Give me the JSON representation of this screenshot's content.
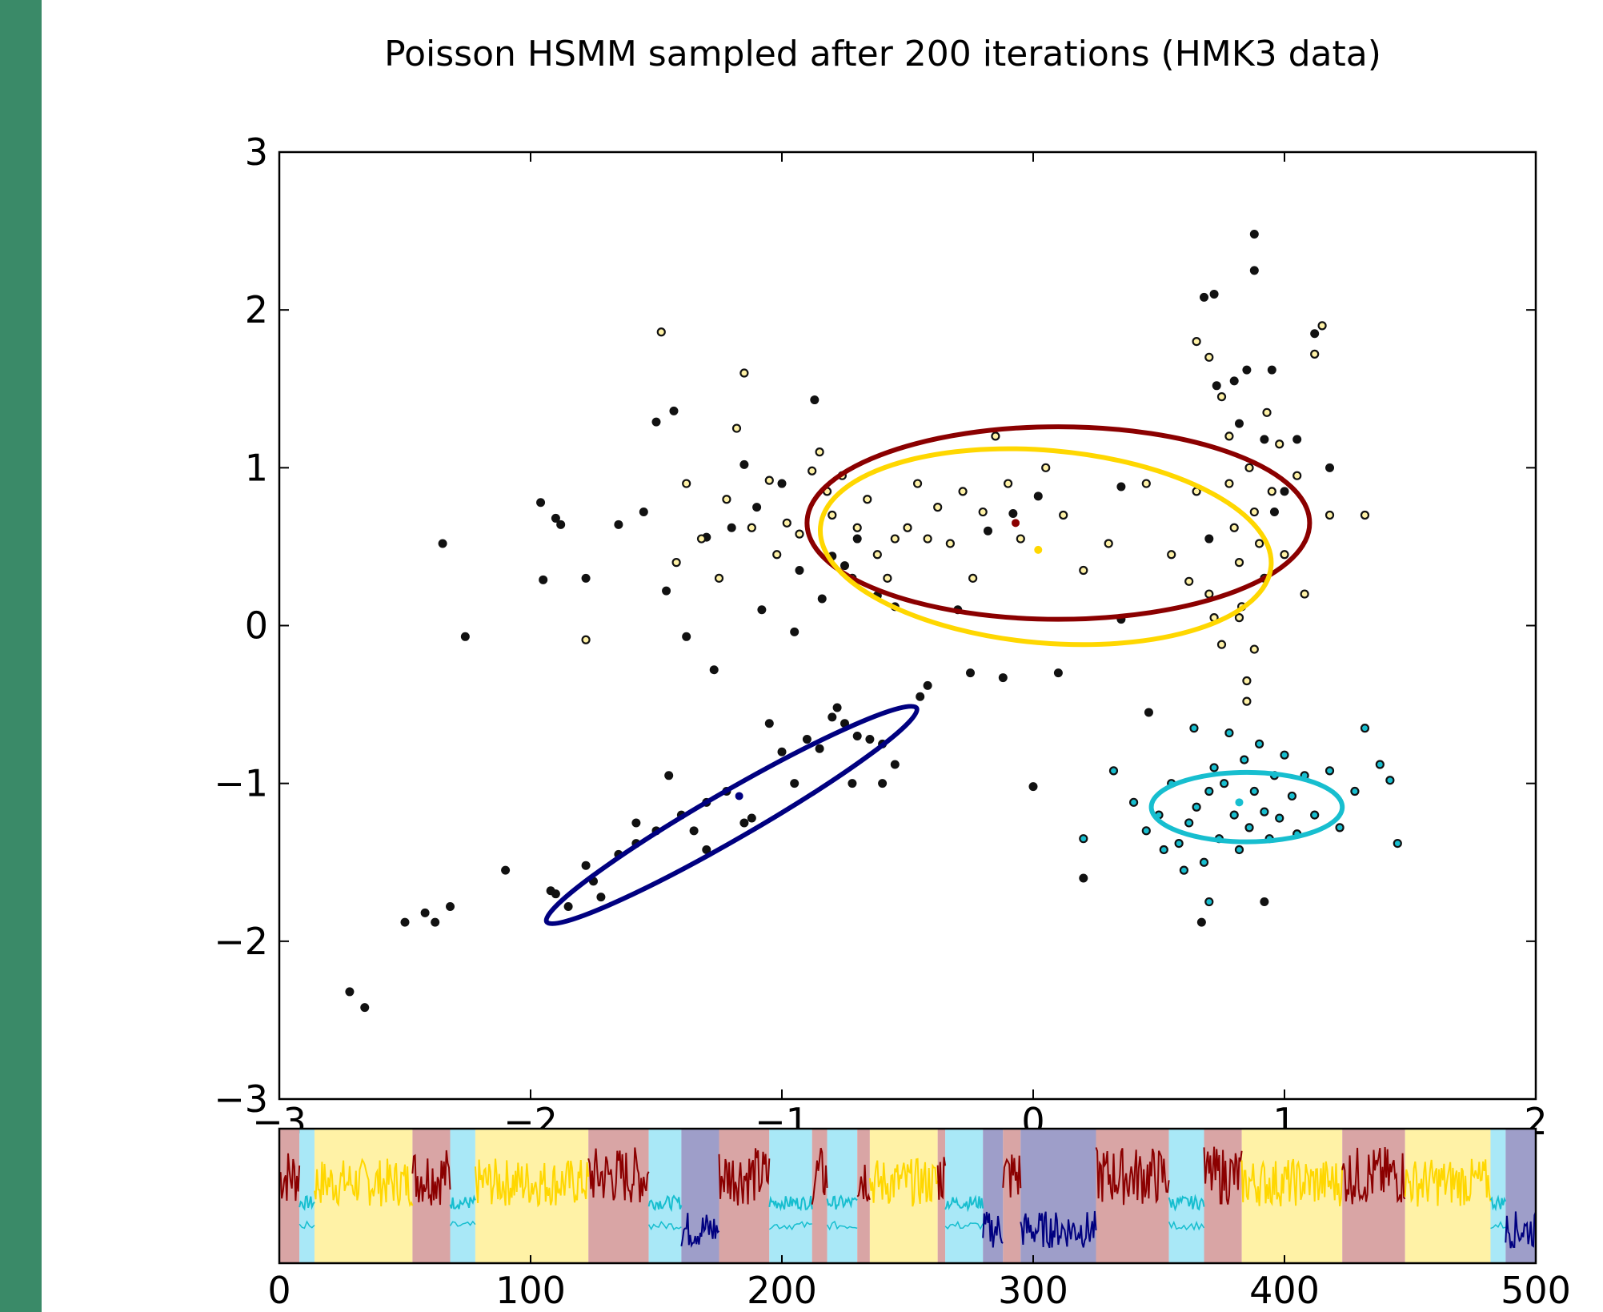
{
  "colors": {
    "side_bar": "#3a8a68",
    "background": "#ffffff",
    "frame": "#000000",
    "brown_state": "#8b0000",
    "yellow_state": "#ffd700",
    "cyan_state": "#17becf",
    "navy_state": "#000080",
    "brown_band": "#d9a5a5",
    "yellow_band": "#fff2a6",
    "cyan_band": "#a9e8f7",
    "navy_band": "#9e9ec9"
  },
  "chart_data": [
    {
      "type": "scatter",
      "title": "Poisson HSMM sampled after 200 iterations (HMK3 data)",
      "xlim": [
        -3,
        2
      ],
      "ylim": [
        -3,
        3
      ],
      "x_ticks": [
        -3,
        -2,
        -1,
        0,
        1,
        2
      ],
      "y_ticks": [
        3,
        2,
        1,
        0,
        -1,
        -2,
        -3
      ],
      "x_tick_labels": [
        "−3",
        "−2",
        "−1",
        "0",
        "1",
        "2"
      ],
      "y_tick_labels": [
        "3",
        "2",
        "1",
        "0",
        "−1",
        "−2",
        "−3"
      ],
      "grid": false,
      "ellipses": [
        {
          "name": "brown",
          "color": "#8b0000",
          "center": [
            0.1,
            0.65
          ],
          "rx": 1.0,
          "ry": 0.61,
          "angle_deg": 0
        },
        {
          "name": "yellow",
          "color": "#ffd700",
          "center": [
            0.05,
            0.5
          ],
          "rx": 0.9,
          "ry": 0.61,
          "angle_deg": -5
        },
        {
          "name": "navy",
          "color": "#000080",
          "center": [
            -1.2,
            -1.2
          ],
          "rx": 0.85,
          "ry": 0.15,
          "angle_deg": 30
        },
        {
          "name": "cyan",
          "color": "#17becf",
          "center": [
            0.85,
            -1.15
          ],
          "rx": 0.38,
          "ry": 0.22,
          "angle_deg": 0
        }
      ],
      "centers": [
        {
          "name": "brown",
          "color": "#8b0000",
          "x": -0.07,
          "y": 0.65
        },
        {
          "name": "yellow",
          "color": "#ffd700",
          "x": 0.02,
          "y": 0.48
        },
        {
          "name": "navy",
          "color": "#000080",
          "x": -1.17,
          "y": -1.08
        },
        {
          "name": "cyan",
          "color": "#17becf",
          "x": 0.82,
          "y": -1.12
        }
      ],
      "points": {
        "black": [
          [
            -2.35,
            0.52
          ],
          [
            -2.26,
            -0.07
          ],
          [
            -1.96,
            0.78
          ],
          [
            -1.95,
            0.29
          ],
          [
            -1.9,
            0.68
          ],
          [
            -1.88,
            0.64
          ],
          [
            -1.78,
            0.3
          ],
          [
            -1.65,
            0.64
          ],
          [
            -1.55,
            0.72
          ],
          [
            -1.5,
            1.29
          ],
          [
            -1.46,
            0.22
          ],
          [
            -1.43,
            1.36
          ],
          [
            -1.38,
            -0.07
          ],
          [
            -1.3,
            0.56
          ],
          [
            -1.27,
            -0.28
          ],
          [
            -1.2,
            0.62
          ],
          [
            -1.15,
            1.02
          ],
          [
            -1.1,
            0.75
          ],
          [
            -1.08,
            0.1
          ],
          [
            -1.0,
            0.9
          ],
          [
            -0.95,
            -0.04
          ],
          [
            -0.93,
            0.35
          ],
          [
            -0.87,
            1.43
          ],
          [
            -0.84,
            0.17
          ],
          [
            -0.8,
            0.44
          ],
          [
            -0.75,
            0.38
          ],
          [
            -0.7,
            0.55
          ],
          [
            -0.62,
            0.19
          ],
          [
            -0.55,
            0.12
          ],
          [
            -0.45,
            -0.45
          ],
          [
            -0.42,
            -0.38
          ],
          [
            -0.3,
            0.1
          ],
          [
            -0.25,
            -0.3
          ],
          [
            -0.18,
            0.6
          ],
          [
            -0.12,
            -0.33
          ],
          [
            -0.08,
            0.71
          ],
          [
            0.02,
            0.82
          ],
          [
            0.1,
            -0.3
          ],
          [
            0.0,
            -1.02
          ],
          [
            0.35,
            0.88
          ],
          [
            0.35,
            0.04
          ],
          [
            0.7,
            0.55
          ],
          [
            0.68,
            2.08
          ],
          [
            0.72,
            2.1
          ],
          [
            0.73,
            1.52
          ],
          [
            0.8,
            1.55
          ],
          [
            0.82,
            1.28
          ],
          [
            0.85,
            1.62
          ],
          [
            0.88,
            2.48
          ],
          [
            0.88,
            2.25
          ],
          [
            0.95,
            1.62
          ],
          [
            1.0,
            0.85
          ],
          [
            1.05,
            1.18
          ],
          [
            1.12,
            1.85
          ],
          [
            1.18,
            1.0
          ],
          [
            0.92,
            1.18
          ],
          [
            0.96,
            0.72
          ],
          [
            -2.5,
            -1.88
          ],
          [
            -2.42,
            -1.82
          ],
          [
            -2.38,
            -1.88
          ],
          [
            -2.32,
            -1.78
          ],
          [
            -2.72,
            -2.32
          ],
          [
            -2.66,
            -2.42
          ],
          [
            -2.1,
            -1.55
          ],
          [
            -1.92,
            -1.68
          ],
          [
            -1.85,
            -1.78
          ],
          [
            -1.78,
            -1.52
          ],
          [
            -1.72,
            -1.72
          ],
          [
            -1.65,
            -1.45
          ],
          [
            -1.58,
            -1.38
          ],
          [
            -1.5,
            -1.3
          ],
          [
            -1.45,
            -0.95
          ],
          [
            -1.4,
            -1.2
          ],
          [
            -1.35,
            -1.3
          ],
          [
            -1.3,
            -1.42
          ],
          [
            -1.22,
            -1.05
          ],
          [
            -1.15,
            -1.25
          ],
          [
            -1.05,
            -0.62
          ],
          [
            -1.0,
            -0.8
          ],
          [
            -0.95,
            -1.0
          ],
          [
            -0.9,
            -0.72
          ],
          [
            -0.85,
            -0.78
          ],
          [
            -0.8,
            -0.58
          ],
          [
            -0.75,
            -0.62
          ],
          [
            -0.7,
            -0.7
          ],
          [
            -0.65,
            -0.72
          ],
          [
            -0.6,
            -0.75
          ],
          [
            -0.55,
            -0.88
          ],
          [
            -0.6,
            -1.0
          ],
          [
            -0.78,
            -0.52
          ],
          [
            -0.72,
            -1.0
          ],
          [
            -1.12,
            -1.22
          ],
          [
            -1.3,
            -1.12
          ],
          [
            -1.58,
            -1.25
          ],
          [
            -1.75,
            -1.62
          ],
          [
            -1.9,
            -1.7
          ],
          [
            0.46,
            -0.55
          ],
          [
            0.2,
            -1.6
          ],
          [
            0.67,
            -1.88
          ],
          [
            0.92,
            -1.75
          ]
        ],
        "yellow_ring": [
          [
            -1.78,
            -0.09
          ],
          [
            -1.48,
            1.86
          ],
          [
            -1.42,
            0.4
          ],
          [
            -1.38,
            0.9
          ],
          [
            -1.32,
            0.55
          ],
          [
            -1.25,
            0.3
          ],
          [
            -1.22,
            0.8
          ],
          [
            -1.18,
            1.25
          ],
          [
            -1.15,
            1.6
          ],
          [
            -1.12,
            0.62
          ],
          [
            -1.05,
            0.92
          ],
          [
            -1.02,
            0.45
          ],
          [
            -0.98,
            0.65
          ],
          [
            -0.93,
            0.58
          ],
          [
            -0.88,
            0.98
          ],
          [
            -0.85,
            1.1
          ],
          [
            -0.82,
            0.85
          ],
          [
            -0.8,
            0.7
          ],
          [
            -0.76,
            0.95
          ],
          [
            -0.72,
            0.3
          ],
          [
            -0.7,
            0.62
          ],
          [
            -0.66,
            0.8
          ],
          [
            -0.62,
            0.45
          ],
          [
            -0.58,
            0.3
          ],
          [
            -0.55,
            0.55
          ],
          [
            -0.5,
            0.62
          ],
          [
            -0.46,
            0.9
          ],
          [
            -0.42,
            0.55
          ],
          [
            -0.38,
            0.75
          ],
          [
            -0.33,
            0.52
          ],
          [
            -0.28,
            0.85
          ],
          [
            -0.24,
            0.3
          ],
          [
            -0.2,
            0.72
          ],
          [
            -0.15,
            1.2
          ],
          [
            -0.1,
            0.9
          ],
          [
            -0.05,
            0.55
          ],
          [
            0.05,
            1.0
          ],
          [
            0.12,
            0.7
          ],
          [
            0.2,
            0.35
          ],
          [
            0.3,
            0.52
          ],
          [
            0.45,
            0.9
          ],
          [
            0.55,
            0.45
          ],
          [
            0.62,
            0.28
          ],
          [
            0.65,
            0.85
          ],
          [
            0.7,
            0.2
          ],
          [
            0.72,
            0.05
          ],
          [
            0.75,
            -0.12
          ],
          [
            0.78,
            0.9
          ],
          [
            0.8,
            0.62
          ],
          [
            0.82,
            0.4
          ],
          [
            0.83,
            0.12
          ],
          [
            0.85,
            -0.35
          ],
          [
            0.86,
            1.0
          ],
          [
            0.88,
            0.72
          ],
          [
            0.9,
            0.52
          ],
          [
            0.92,
            0.3
          ],
          [
            0.93,
            1.35
          ],
          [
            0.95,
            0.85
          ],
          [
            0.98,
            1.15
          ],
          [
            1.0,
            0.45
          ],
          [
            1.05,
            0.95
          ],
          [
            1.08,
            0.2
          ],
          [
            1.12,
            1.72
          ],
          [
            1.15,
            1.9
          ],
          [
            1.18,
            0.7
          ],
          [
            1.32,
            0.7
          ],
          [
            0.65,
            1.8
          ],
          [
            0.7,
            1.7
          ],
          [
            0.75,
            1.45
          ],
          [
            0.78,
            1.2
          ],
          [
            0.82,
            0.05
          ],
          [
            0.85,
            -0.48
          ],
          [
            0.88,
            -0.15
          ]
        ],
        "cyan_ring": [
          [
            0.32,
            -0.92
          ],
          [
            0.4,
            -1.12
          ],
          [
            0.45,
            -1.3
          ],
          [
            0.5,
            -1.2
          ],
          [
            0.52,
            -1.42
          ],
          [
            0.55,
            -1.0
          ],
          [
            0.58,
            -1.38
          ],
          [
            0.62,
            -1.25
          ],
          [
            0.64,
            -0.65
          ],
          [
            0.65,
            -1.15
          ],
          [
            0.68,
            -1.5
          ],
          [
            0.7,
            -1.05
          ],
          [
            0.72,
            -0.9
          ],
          [
            0.74,
            -1.35
          ],
          [
            0.76,
            -1.0
          ],
          [
            0.78,
            -0.68
          ],
          [
            0.8,
            -1.2
          ],
          [
            0.82,
            -1.42
          ],
          [
            0.84,
            -0.85
          ],
          [
            0.86,
            -1.28
          ],
          [
            0.88,
            -1.05
          ],
          [
            0.9,
            -0.75
          ],
          [
            0.92,
            -1.18
          ],
          [
            0.94,
            -1.35
          ],
          [
            0.96,
            -0.95
          ],
          [
            0.98,
            -1.22
          ],
          [
            1.0,
            -0.82
          ],
          [
            1.03,
            -1.08
          ],
          [
            1.05,
            -1.32
          ],
          [
            1.08,
            -0.95
          ],
          [
            1.12,
            -1.2
          ],
          [
            1.18,
            -0.92
          ],
          [
            1.22,
            -1.28
          ],
          [
            1.28,
            -1.05
          ],
          [
            1.32,
            -0.65
          ],
          [
            1.38,
            -0.88
          ],
          [
            1.42,
            -0.98
          ],
          [
            1.45,
            -1.38
          ],
          [
            0.2,
            -1.35
          ],
          [
            0.6,
            -1.55
          ],
          [
            0.7,
            -1.75
          ]
        ]
      }
    },
    {
      "type": "area",
      "xlim": [
        0,
        500
      ],
      "x_ticks": [
        0,
        100,
        200,
        300,
        400,
        500
      ],
      "x_tick_labels": [
        "0",
        "100",
        "200",
        "300",
        "400",
        "500"
      ],
      "segments": [
        {
          "state": "brown",
          "start": 0,
          "end": 8
        },
        {
          "state": "cyan",
          "start": 8,
          "end": 14
        },
        {
          "state": "yellow",
          "start": 14,
          "end": 53
        },
        {
          "state": "brown",
          "start": 53,
          "end": 68
        },
        {
          "state": "cyan",
          "start": 68,
          "end": 78
        },
        {
          "state": "yellow",
          "start": 78,
          "end": 123
        },
        {
          "state": "brown",
          "start": 123,
          "end": 147
        },
        {
          "state": "cyan",
          "start": 147,
          "end": 160
        },
        {
          "state": "navy",
          "start": 160,
          "end": 175
        },
        {
          "state": "brown",
          "start": 175,
          "end": 195
        },
        {
          "state": "cyan",
          "start": 195,
          "end": 212
        },
        {
          "state": "brown",
          "start": 212,
          "end": 218
        },
        {
          "state": "cyan",
          "start": 218,
          "end": 230
        },
        {
          "state": "brown",
          "start": 230,
          "end": 235
        },
        {
          "state": "yellow",
          "start": 235,
          "end": 262
        },
        {
          "state": "brown",
          "start": 262,
          "end": 265
        },
        {
          "state": "cyan",
          "start": 265,
          "end": 280
        },
        {
          "state": "navy",
          "start": 280,
          "end": 288
        },
        {
          "state": "brown",
          "start": 288,
          "end": 295
        },
        {
          "state": "navy",
          "start": 295,
          "end": 325
        },
        {
          "state": "brown",
          "start": 325,
          "end": 354
        },
        {
          "state": "cyan",
          "start": 354,
          "end": 368
        },
        {
          "state": "brown",
          "start": 368,
          "end": 383
        },
        {
          "state": "yellow",
          "start": 383,
          "end": 423
        },
        {
          "state": "brown",
          "start": 423,
          "end": 448
        },
        {
          "state": "yellow",
          "start": 448,
          "end": 482
        },
        {
          "state": "cyan",
          "start": 482,
          "end": 488
        },
        {
          "state": "navy",
          "start": 488,
          "end": 500
        }
      ],
      "state_levels": {
        "brown": 0.65,
        "yellow": 0.6,
        "cyan": 0.45,
        "navy": 0.25
      },
      "state_spread": {
        "brown": 0.22,
        "yellow": 0.18,
        "cyan": 0.05,
        "navy": 0.14
      }
    }
  ]
}
